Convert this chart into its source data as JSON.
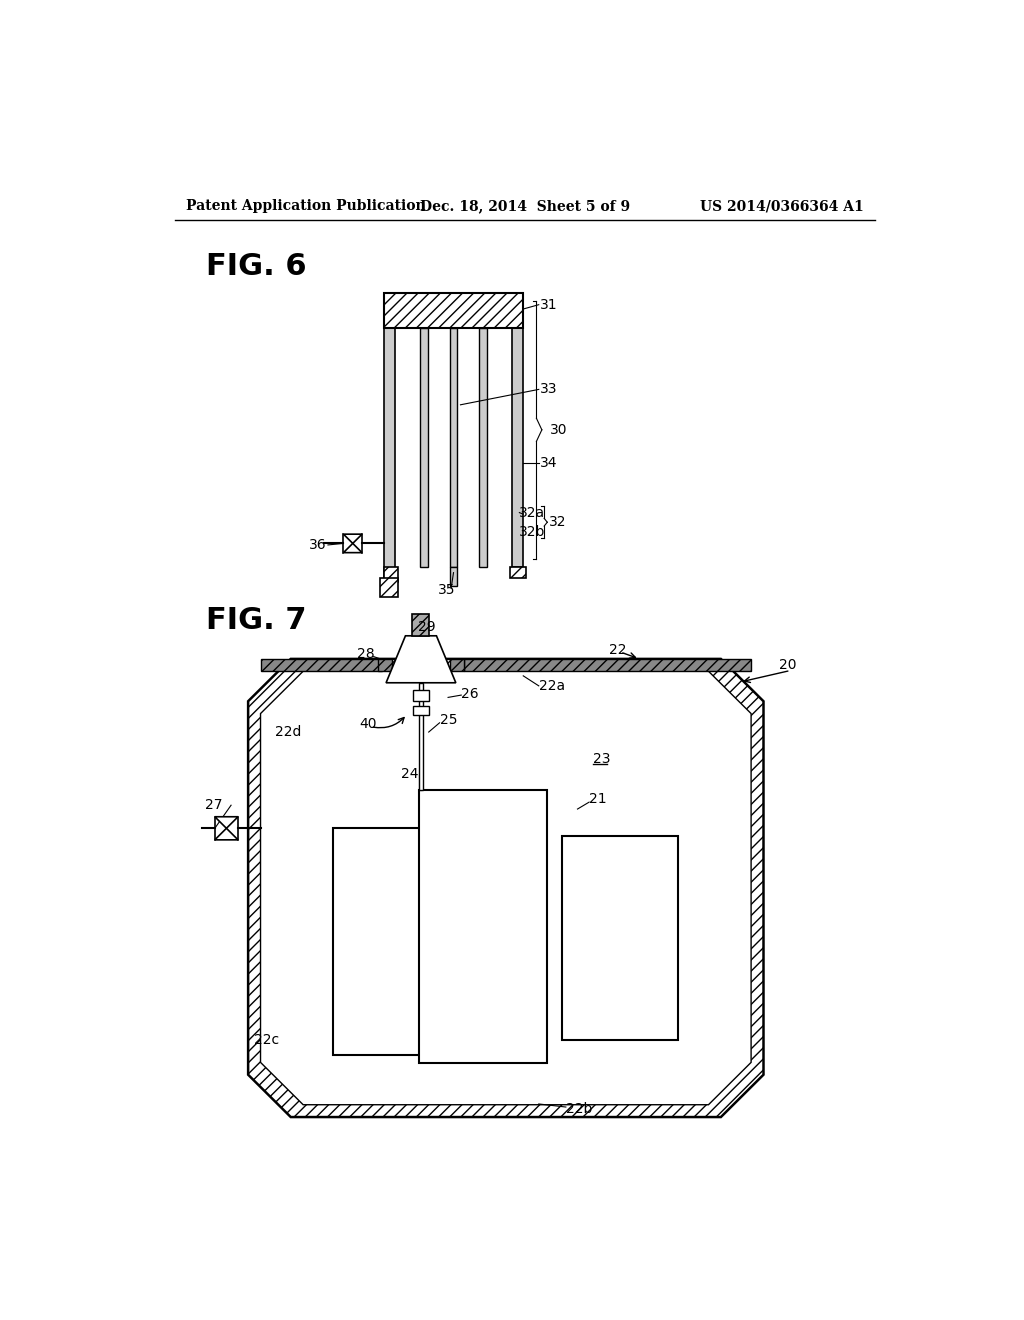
{
  "bg_color": "#ffffff",
  "header": {
    "left": "Patent Application Publication",
    "center": "Dec. 18, 2014  Sheet 5 of 9",
    "right": "US 2014/0366364 A1"
  },
  "fig6_label": "FIG. 6",
  "fig7_label": "FIG. 7"
}
